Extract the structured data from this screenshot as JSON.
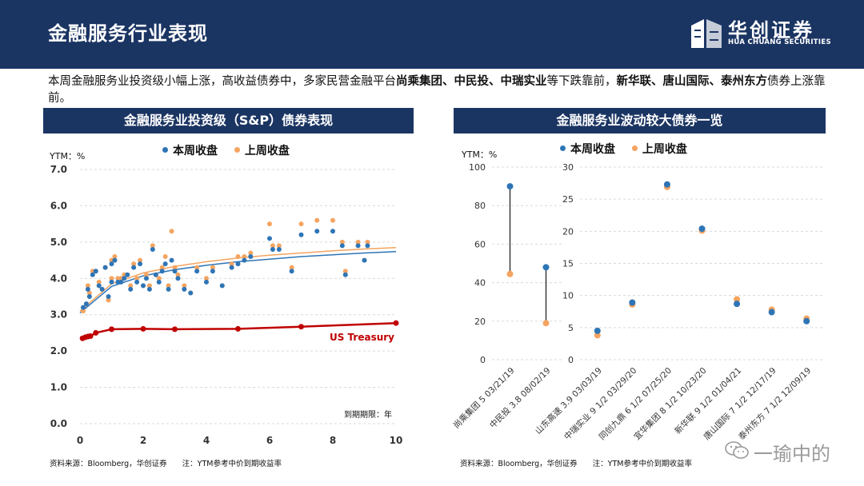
{
  "header": {
    "title": "金融服务行业表现",
    "logo_cn": "华创证券",
    "logo_en": "HUA CHUANG SECURITIES"
  },
  "intro": {
    "t1": "本周金融服务业投资级小幅上涨，高收益债券中，多家民营金融平台",
    "b1": "尚乘集团、中民投、中瑞实业",
    "t2": "等下跌靠前，",
    "b2": "新华联、唐山国际、泰州东方",
    "t3": "债券上涨靠前。"
  },
  "left_panel": {
    "banner": "金融服务业投资级（S&P）债券表现",
    "ylabel": "YTM：%",
    "legend_this": "本周收盘",
    "legend_last": "上周收盘",
    "source": "资料来源：Bloomberg，华创证券　　注：YTM参考中价到期收益率"
  },
  "right_panel": {
    "banner": "金融服务业波动较大债券一览",
    "ylabel": "YTM：%",
    "legend_this": "本周收盘",
    "legend_last": "上周收盘",
    "source": "资料来源：Bloomberg，华创证券　　注：YTM参考中价到期收益率"
  },
  "watermark": "一瑜中的",
  "colors": {
    "navy": "#1b3563",
    "blue": "#2e75b6",
    "orange": "#f4a460",
    "red": "#c00000",
    "grid": "#d9d9d9"
  },
  "chart_data": [
    {
      "type": "scatter",
      "title": "金融服务业投资级（S&P）债券表现",
      "xlabel": "到期期限：年",
      "ylabel": "YTM：%",
      "xlim": [
        0,
        10
      ],
      "ylim": [
        0,
        7
      ],
      "xticks": [
        "0",
        "2",
        "4",
        "6",
        "8",
        "10"
      ],
      "yticks": [
        "0.0",
        "1.0",
        "2.0",
        "3.0",
        "4.0",
        "5.0",
        "6.0",
        "7.0"
      ],
      "series": [
        {
          "name": "本周收盘",
          "x": [
            0.1,
            0.2,
            0.25,
            0.3,
            0.4,
            0.5,
            0.6,
            0.7,
            0.8,
            0.9,
            1.0,
            1.0,
            1.1,
            1.2,
            1.3,
            1.4,
            1.5,
            1.6,
            1.7,
            1.8,
            1.9,
            2.0,
            2.1,
            2.2,
            2.3,
            2.4,
            2.5,
            2.6,
            2.7,
            2.8,
            2.9,
            3.0,
            3.1,
            3.3,
            3.5,
            3.7,
            4.0,
            4.2,
            4.5,
            4.8,
            5.0,
            5.2,
            5.4,
            6.0,
            6.1,
            6.3,
            6.7,
            7.0,
            7.5,
            8.0,
            8.3,
            8.4,
            8.8,
            9.0,
            9.1
          ],
          "y": [
            3.2,
            3.3,
            3.7,
            3.5,
            4.1,
            4.2,
            3.8,
            3.7,
            4.3,
            3.5,
            4.4,
            3.9,
            4.5,
            3.9,
            3.9,
            4.0,
            4.1,
            3.7,
            4.3,
            3.9,
            4.4,
            3.8,
            4.0,
            3.7,
            4.8,
            4.1,
            3.9,
            4.2,
            4.4,
            3.7,
            4.5,
            4.2,
            4.0,
            3.7,
            3.6,
            4.2,
            3.9,
            4.2,
            3.8,
            4.3,
            4.4,
            4.5,
            4.6,
            5.1,
            4.8,
            4.8,
            4.2,
            5.2,
            5.3,
            5.3,
            4.9,
            4.1,
            4.9,
            4.5,
            4.9
          ]
        },
        {
          "name": "上周收盘",
          "x": [
            0.1,
            0.2,
            0.25,
            0.3,
            0.4,
            0.5,
            0.6,
            0.7,
            0.8,
            0.9,
            1.0,
            1.0,
            1.1,
            1.2,
            1.3,
            1.4,
            1.5,
            1.6,
            1.7,
            1.8,
            1.9,
            2.0,
            2.1,
            2.2,
            2.3,
            2.4,
            2.5,
            2.6,
            2.7,
            2.8,
            2.9,
            3.0,
            3.1,
            3.3,
            3.5,
            3.7,
            4.0,
            4.2,
            4.5,
            4.8,
            5.0,
            5.2,
            5.4,
            6.0,
            6.1,
            6.3,
            6.7,
            7.0,
            7.5,
            8.0,
            8.3,
            8.4,
            8.8,
            9.0,
            9.1
          ],
          "y": [
            3.1,
            3.3,
            3.8,
            3.6,
            4.2,
            4.2,
            3.9,
            3.7,
            4.3,
            3.4,
            4.5,
            4.0,
            4.6,
            4.0,
            4.0,
            4.1,
            4.1,
            3.8,
            4.4,
            4.0,
            4.5,
            3.8,
            4.1,
            3.8,
            4.9,
            4.1,
            4.0,
            4.3,
            4.6,
            3.8,
            5.3,
            4.3,
            4.1,
            3.8,
            3.6,
            4.3,
            4.0,
            4.3,
            3.8,
            4.4,
            4.6,
            4.6,
            4.7,
            5.5,
            4.9,
            4.9,
            4.3,
            5.5,
            5.6,
            5.6,
            5.0,
            4.2,
            5.0,
            4.5,
            5.0
          ]
        },
        {
          "name": "本周拟合",
          "type": "line",
          "x": [
            0,
            1,
            2,
            3,
            4,
            5,
            6,
            7,
            8,
            9,
            10
          ],
          "y": [
            3.05,
            3.78,
            4.07,
            4.24,
            4.36,
            4.46,
            4.53,
            4.6,
            4.65,
            4.7,
            4.74
          ]
        },
        {
          "name": "上周拟合",
          "type": "line",
          "x": [
            0,
            1,
            2,
            3,
            4,
            5,
            6,
            7,
            8,
            9,
            10
          ],
          "y": [
            3.1,
            3.85,
            4.15,
            4.33,
            4.46,
            4.56,
            4.64,
            4.7,
            4.76,
            4.81,
            4.85
          ]
        },
        {
          "name": "US Treasury",
          "type": "line",
          "x": [
            0.08,
            0.17,
            0.25,
            0.33,
            0.5,
            1,
            2,
            3,
            5,
            7,
            10
          ],
          "y": [
            2.35,
            2.38,
            2.4,
            2.41,
            2.5,
            2.6,
            2.61,
            2.6,
            2.61,
            2.67,
            2.77
          ]
        }
      ],
      "annotation": "US Treasury"
    },
    {
      "type": "dumbbell",
      "title": "金融服务业波动较大债券一览",
      "ylabel": "YTM：%",
      "left": {
        "ylim": [
          0,
          100
        ],
        "yticks": [
          "0",
          "20",
          "40",
          "60",
          "80",
          "100"
        ],
        "categories": [
          "尚乘集团 5 03/21/19",
          "中民投 3.8 08/02/19"
        ],
        "this_week": [
          90,
          48
        ],
        "last_week": [
          44.5,
          19
        ]
      },
      "right": {
        "ylim": [
          0,
          30
        ],
        "yticks": [
          "0",
          "5",
          "10",
          "15",
          "20",
          "25",
          "30"
        ],
        "categories": [
          "山东高速 3.9 03/03/19",
          "中瑞实业 9 1/2 03/29/20",
          "同创九鼎 6 1/2 07/25/20",
          "宜华集团 8 1/2 10/23/20",
          "新华联 9 1/2 01/04/21",
          "唐山国际 7 1/2 12/17/19",
          "泰州东方 7 1/2 12/09/19"
        ],
        "this_week": [
          4.5,
          8.9,
          27.3,
          20.4,
          8.7,
          7.4,
          6.0
        ],
        "last_week": [
          3.8,
          8.6,
          26.9,
          20.1,
          9.4,
          7.8,
          6.4
        ]
      }
    }
  ]
}
